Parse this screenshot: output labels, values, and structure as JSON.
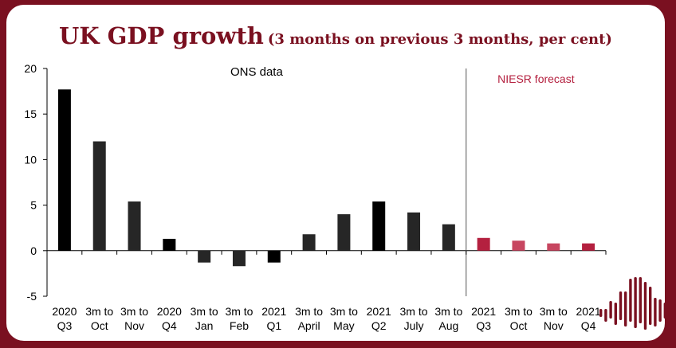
{
  "title": "UK GDP growth",
  "subtitle": "(3 months on previous 3 months, per cent)",
  "colors": {
    "background_frame": "#7a1020",
    "title": "#7a1020",
    "ons_bar": "#262626",
    "ons_bar_quarter": "#000000",
    "forecast_bar": "#b4203f",
    "forecast_bar_light": "#c74660",
    "forecast_label": "#b4203f",
    "divider": "#555555"
  },
  "chart_data": {
    "type": "bar",
    "title": "UK GDP growth",
    "subtitle": "(3 months on previous 3 months, per cent)",
    "xlabel": "",
    "ylabel": "",
    "ylim": [
      -5,
      20
    ],
    "yticks": [
      20,
      15,
      10,
      5,
      0,
      -5
    ],
    "annotations": {
      "ons": "ONS data",
      "forecast": "NIESR forecast"
    },
    "categories": [
      [
        "2020",
        "Q3"
      ],
      [
        "3m to",
        "Oct"
      ],
      [
        "3m to",
        "Nov"
      ],
      [
        "2020",
        "Q4"
      ],
      [
        "3m to",
        "Jan"
      ],
      [
        "3m to",
        "Feb"
      ],
      [
        "2021",
        "Q1"
      ],
      [
        "3m to",
        "April"
      ],
      [
        "3m to",
        "May"
      ],
      [
        "2021",
        "Q2"
      ],
      [
        "3m to",
        "July"
      ],
      [
        "3m to",
        "Aug"
      ],
      [
        "2021",
        "Q3"
      ],
      [
        "3m to",
        "Oct"
      ],
      [
        "3m to",
        "Nov"
      ],
      [
        "2021",
        "Q4"
      ]
    ],
    "series": [
      {
        "name": "ONS data",
        "values": [
          17.7,
          12.0,
          5.4,
          1.3,
          -1.3,
          -1.7,
          -1.3,
          1.8,
          4.0,
          5.4,
          4.2,
          2.9,
          null,
          null,
          null,
          null
        ]
      },
      {
        "name": "NIESR forecast",
        "values": [
          null,
          null,
          null,
          null,
          null,
          null,
          null,
          null,
          null,
          null,
          null,
          null,
          1.4,
          1.1,
          0.8,
          0.8
        ]
      }
    ],
    "quarter_bars": [
      0,
      3,
      6,
      9,
      12,
      15
    ]
  }
}
